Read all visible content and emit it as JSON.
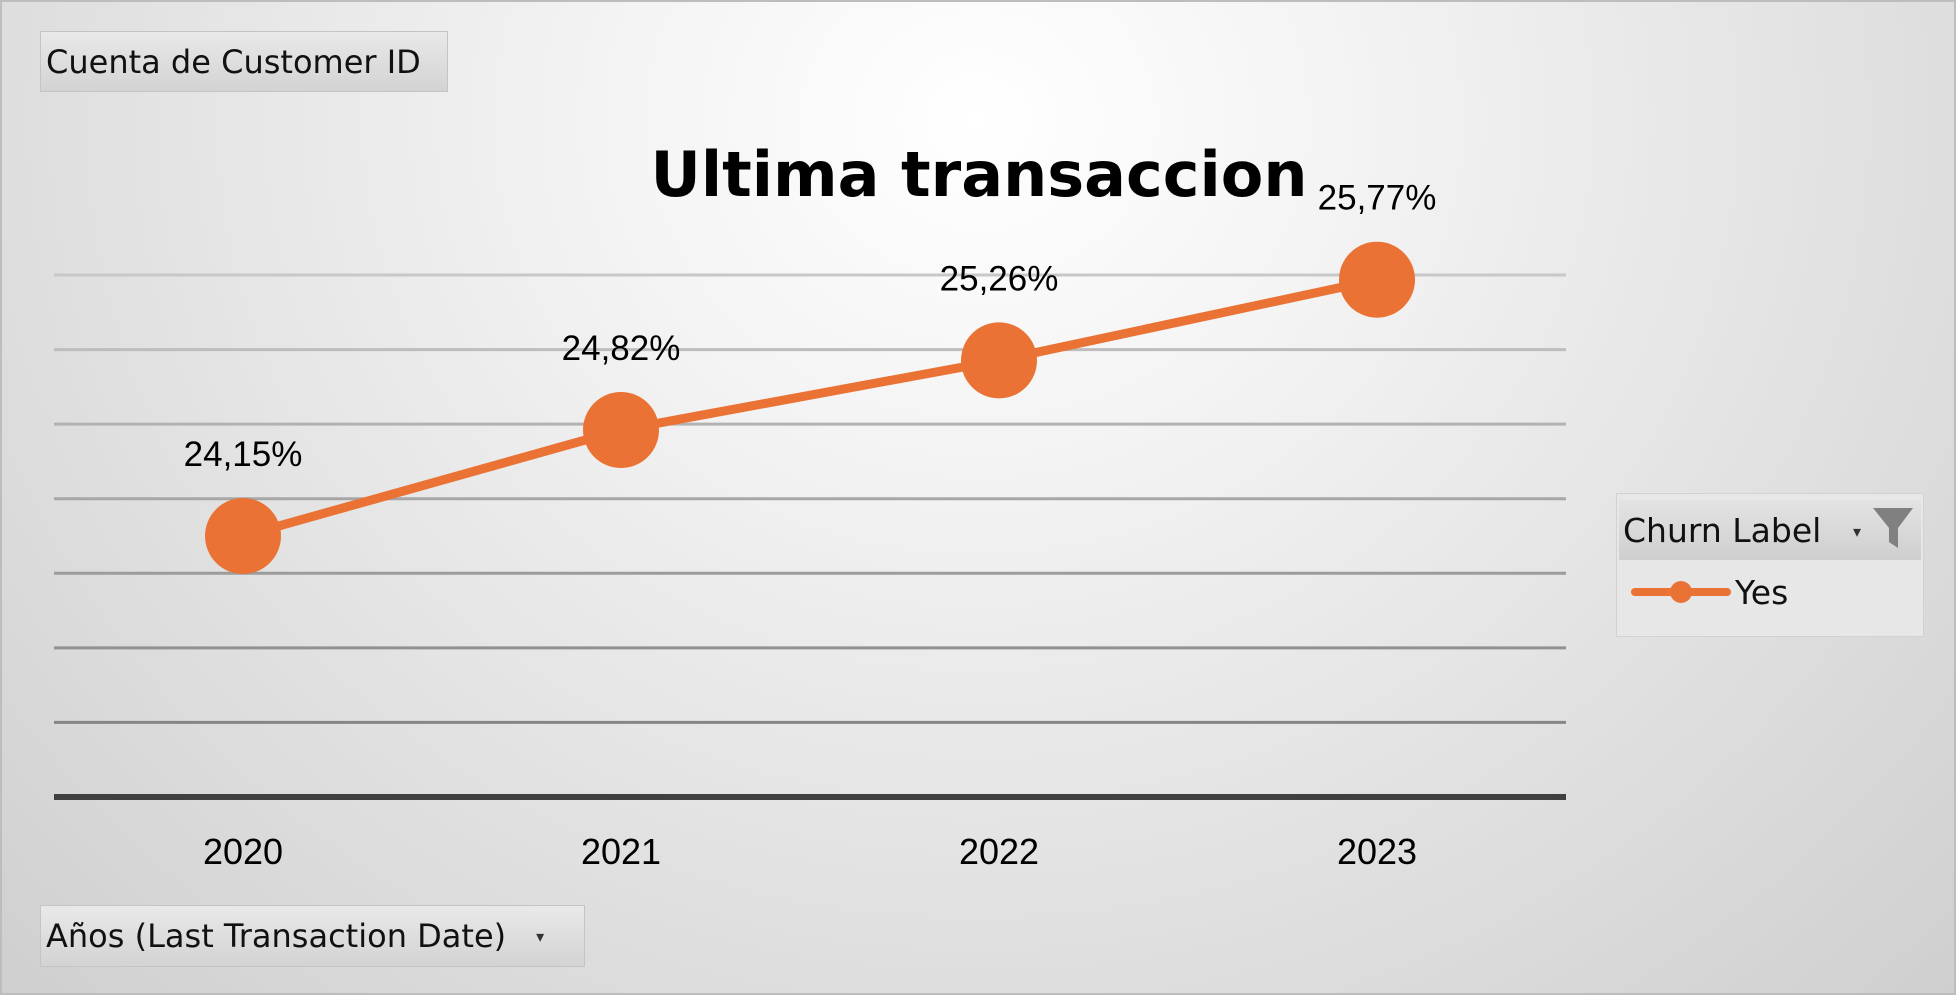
{
  "pivot": {
    "value_field_label": "Cuenta de Customer ID",
    "axis_field_label": "Años (Last Transaction Date)"
  },
  "legend": {
    "title": "Churn Label",
    "filter_icon": "filter-icon",
    "dropdown_icon": "dropdown-arrow-icon"
  },
  "colors": {
    "series": "#ea7234",
    "axis_line": "#404040",
    "gridline": "#a6a6a6"
  },
  "chart_data": {
    "type": "line",
    "title": "Ultima transaccion",
    "xlabel": "",
    "ylabel": "",
    "categories": [
      "2020",
      "2021",
      "2022",
      "2023"
    ],
    "series": [
      {
        "name": "Yes",
        "values": [
          24.15,
          24.82,
          25.26,
          25.77
        ],
        "data_labels": [
          "24,15%",
          "24,82%",
          "25,26%",
          "25,77%"
        ],
        "marker": "circle"
      }
    ],
    "ylim": [
      22.5,
      25.8
    ],
    "grid": true,
    "y_axis_visible": false,
    "legend_position": "right"
  }
}
